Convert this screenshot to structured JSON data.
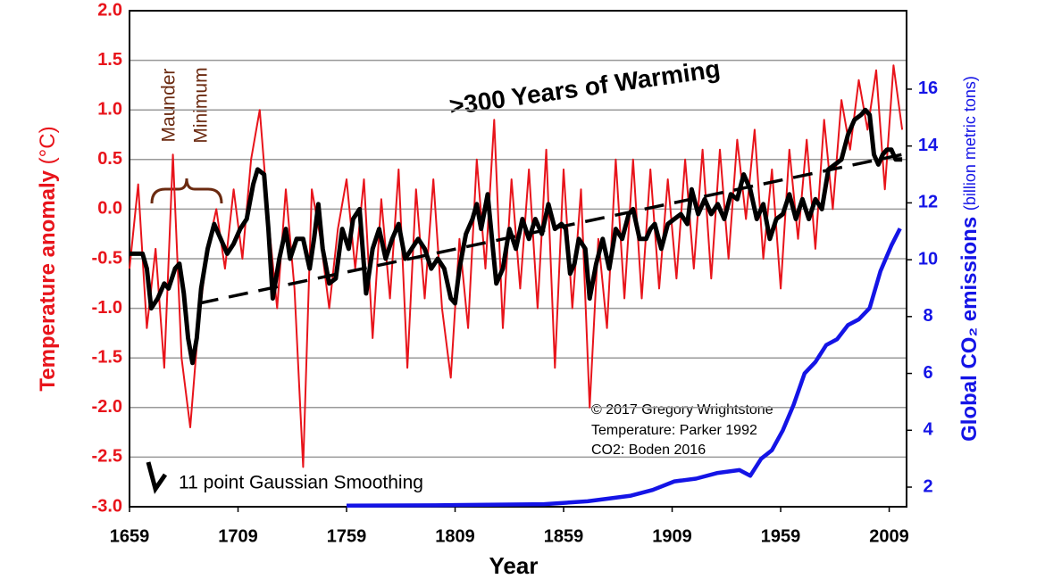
{
  "chart_data": {
    "type": "line",
    "title": ">300 Years of Warming",
    "annotation_maunder": [
      "Maunder",
      "Minimum"
    ],
    "credits": [
      "© 2017 Gregory Wrightstone",
      "Temperature: Parker 1992",
      "CO2: Boden 2016"
    ],
    "xlabel": "Year",
    "ylabel": "Temperature anomaly",
    "ylabel_unit": "(°C)",
    "y2label": "Global CO₂ emissions",
    "y2label_unit": "(billion metric tons)",
    "xlim": [
      1659,
      2017
    ],
    "ylim": [
      -3.0,
      2.0
    ],
    "y2lim": [
      1.31,
      18.76
    ],
    "xticks": [
      1659,
      1709,
      1759,
      1809,
      1859,
      1909,
      1959,
      2009
    ],
    "yticks": [
      {
        "value": 2,
        "label": "2.0"
      },
      1.5,
      {
        "value": 1,
        "label": "1.0"
      },
      0.5,
      {
        "value": 0,
        "label": "0.0"
      },
      -0.5,
      {
        "value": -1,
        "label": "-1.0"
      },
      -1.5,
      {
        "value": -2,
        "label": "-2.0"
      },
      -2.5,
      {
        "value": -3,
        "label": "-3.0"
      }
    ],
    "y2ticks": [
      2,
      4,
      6,
      8,
      10,
      12,
      14,
      16
    ],
    "grid": true,
    "series": [
      {
        "color": "#e8141b",
        "x": [
          1659,
          1663,
          1667,
          1671,
          1675,
          1679,
          1683,
          1687,
          1691,
          1695,
          1699,
          1703,
          1707,
          1711,
          1715,
          1719,
          1723,
          1727,
          1731,
          1735,
          1739,
          1743,
          1747,
          1751,
          1755,
          1759,
          1763,
          1767,
          1771,
          1775,
          1779,
          1783,
          1787,
          1791,
          1795,
          1799,
          1803,
          1807,
          1811,
          1815,
          1819,
          1823,
          1827,
          1831,
          1835,
          1839,
          1843,
          1847,
          1851,
          1855,
          1859,
          1863,
          1867,
          1871,
          1875,
          1879,
          1883,
          1887,
          1891,
          1895,
          1899,
          1903,
          1907,
          1911,
          1915,
          1919,
          1923,
          1927,
          1931,
          1935,
          1939,
          1943,
          1947,
          1951,
          1955,
          1959,
          1963,
          1967,
          1971,
          1975,
          1979,
          1983,
          1987,
          1991,
          1995,
          1999,
          2003,
          2007,
          2011,
          2015
        ],
        "values": [
          -0.6,
          0.25,
          -1.2,
          -0.4,
          -1.6,
          0.55,
          -1.5,
          -2.2,
          -1.1,
          -0.4,
          0.0,
          -0.6,
          0.2,
          -0.5,
          0.5,
          1.0,
          -0.1,
          -1.0,
          0.2,
          -0.8,
          -2.6,
          0.2,
          -0.3,
          -1.0,
          -0.2,
          0.3,
          -0.6,
          0.3,
          -1.3,
          0.1,
          -0.9,
          0.4,
          -1.6,
          0.2,
          -0.9,
          0.3,
          -1.0,
          -1.7,
          -0.3,
          -1.2,
          0.5,
          -0.6,
          0.9,
          -1.2,
          0.3,
          -0.8,
          0.4,
          -1.0,
          0.6,
          -1.6,
          0.4,
          -1.0,
          0.2,
          -2.0,
          -0.3,
          -1.2,
          0.5,
          -0.9,
          0.5,
          -0.9,
          0.4,
          -0.8,
          0.3,
          -0.7,
          0.5,
          -0.6,
          0.6,
          -0.7,
          0.6,
          -0.5,
          0.7,
          -0.1,
          0.8,
          -0.5,
          0.4,
          -0.8,
          0.6,
          -0.3,
          0.7,
          -0.4,
          0.9,
          0.0,
          1.1,
          0.6,
          1.3,
          0.8,
          1.4,
          0.2,
          1.45,
          0.8
        ]
      },
      {
        "name": "11 point Gaussian Smoothing",
        "color": "#000000",
        "x": [
          1659,
          1662,
          1665,
          1667,
          1669,
          1672,
          1675,
          1677,
          1680,
          1682,
          1684,
          1686,
          1688,
          1690,
          1692,
          1695,
          1698,
          1701,
          1704,
          1707,
          1710,
          1713,
          1716,
          1718,
          1721,
          1723,
          1725,
          1728,
          1731,
          1733,
          1736,
          1739,
          1742,
          1744,
          1746,
          1748,
          1751,
          1754,
          1757,
          1760,
          1762,
          1765,
          1768,
          1771,
          1774,
          1777,
          1780,
          1783,
          1786,
          1789,
          1792,
          1795,
          1798,
          1801,
          1804,
          1807,
          1809,
          1811,
          1814,
          1817,
          1819,
          1821,
          1824,
          1826,
          1828,
          1831,
          1834,
          1837,
          1840,
          1843,
          1846,
          1849,
          1852,
          1855,
          1858,
          1860,
          1862,
          1864,
          1866,
          1869,
          1871,
          1874,
          1877,
          1880,
          1883,
          1886,
          1889,
          1891,
          1894,
          1897,
          1899,
          1901,
          1904,
          1907,
          1910,
          1913,
          1916,
          1918,
          1921,
          1924,
          1927,
          1930,
          1933,
          1936,
          1939,
          1942,
          1945,
          1948,
          1951,
          1954,
          1957,
          1960,
          1963,
          1966,
          1969,
          1972,
          1975,
          1978,
          1981,
          1984,
          1987,
          1990,
          1993,
          1996,
          1998,
          2000,
          2002,
          2004,
          2006,
          2008,
          2010,
          2012,
          2015
        ],
        "values": [
          -0.45,
          -0.45,
          -0.45,
          -0.6,
          -1.0,
          -0.9,
          -0.75,
          -0.8,
          -0.6,
          -0.55,
          -0.85,
          -1.3,
          -1.55,
          -1.3,
          -0.8,
          -0.4,
          -0.15,
          -0.3,
          -0.45,
          -0.35,
          -0.2,
          -0.1,
          0.25,
          0.4,
          0.35,
          -0.2,
          -0.9,
          -0.5,
          -0.2,
          -0.5,
          -0.3,
          -0.3,
          -0.6,
          -0.3,
          0.05,
          -0.4,
          -0.75,
          -0.7,
          -0.2,
          -0.4,
          -0.1,
          0.0,
          -0.85,
          -0.4,
          -0.2,
          -0.5,
          -0.3,
          -0.15,
          -0.5,
          -0.4,
          -0.3,
          -0.4,
          -0.6,
          -0.5,
          -0.6,
          -0.9,
          -0.95,
          -0.6,
          -0.25,
          -0.1,
          0.05,
          -0.2,
          0.15,
          -0.3,
          -0.75,
          -0.6,
          -0.2,
          -0.4,
          -0.1,
          -0.3,
          -0.1,
          -0.25,
          0.05,
          -0.2,
          -0.15,
          -0.2,
          -0.65,
          -0.55,
          -0.3,
          -0.4,
          -0.9,
          -0.55,
          -0.3,
          -0.6,
          -0.2,
          -0.3,
          -0.05,
          0.0,
          -0.3,
          -0.3,
          -0.2,
          -0.15,
          -0.4,
          -0.15,
          -0.1,
          -0.05,
          -0.15,
          0.2,
          -0.05,
          0.1,
          -0.05,
          0.05,
          -0.1,
          0.15,
          0.1,
          0.35,
          0.2,
          -0.1,
          0.05,
          -0.3,
          -0.1,
          -0.05,
          0.15,
          -0.1,
          0.1,
          -0.1,
          0.1,
          0.0,
          0.4,
          0.45,
          0.5,
          0.75,
          0.9,
          0.95,
          1.0,
          0.95,
          0.55,
          0.45,
          0.55,
          0.6,
          0.6,
          0.5,
          0.5
        ]
      },
      {
        "color": "#000000",
        "dashed": true,
        "x": [
          1691,
          2015
        ],
        "values": [
          -0.95,
          0.55
        ]
      },
      {
        "color": "#1414e6",
        "axis": "y2",
        "x": [
          1759,
          1800,
          1850,
          1870,
          1890,
          1900,
          1910,
          1920,
          1930,
          1940,
          1945,
          1950,
          1955,
          1960,
          1965,
          1970,
          1975,
          1980,
          1985,
          1990,
          1995,
          2000,
          2005,
          2010,
          2014
        ],
        "values": [
          1.35,
          1.36,
          1.4,
          1.5,
          1.7,
          1.9,
          2.2,
          2.3,
          2.5,
          2.6,
          2.4,
          3.0,
          3.3,
          4.0,
          4.9,
          6.0,
          6.4,
          7.0,
          7.2,
          7.7,
          7.9,
          8.3,
          9.6,
          10.5,
          11.1
        ]
      }
    ]
  }
}
